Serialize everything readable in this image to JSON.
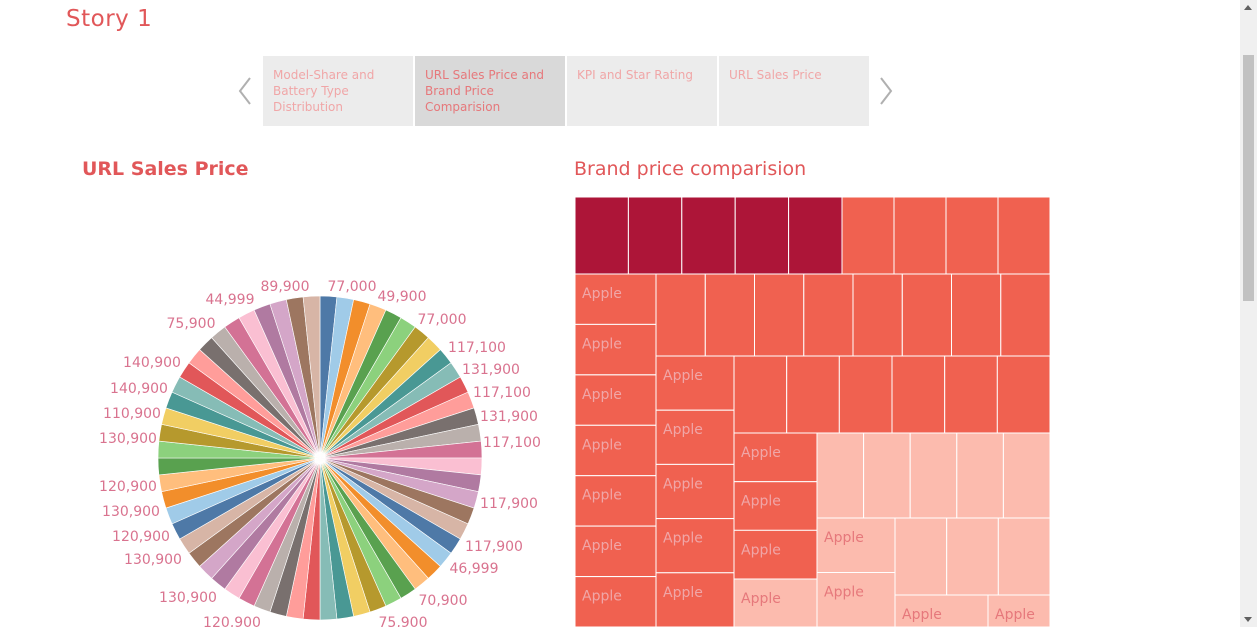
{
  "story": {
    "title": "Story 1"
  },
  "nav": {
    "prev_icon": "chevron-left-icon",
    "next_icon": "chevron-right-icon",
    "tabs": [
      {
        "label": "Model-Share and Battery Type Distribution",
        "active": false
      },
      {
        "label": "URL Sales Price and Brand Price Comparision",
        "active": true
      },
      {
        "label": "KPI and Star Rating",
        "active": false
      },
      {
        "label": "URL Sales Price",
        "active": false
      }
    ]
  },
  "colors": {
    "accent": "#e15759",
    "tree_dark": "#ad1538",
    "tree_mid": "#f06150",
    "tree_light": "#fcbbae",
    "tab_bg": "#ececec",
    "tab_active_bg": "#d9d9d9"
  },
  "chart_data": [
    {
      "type": "pie",
      "title": "URL Sales Price",
      "slice_count": 60,
      "visible_labels": [
        "89,900",
        "77,000",
        "49,900",
        "77,000",
        "117,100",
        "131,900",
        "117,100",
        "131,900",
        "117,100",
        "117,900",
        "117,900",
        "46,999",
        "70,900",
        "75,900",
        "120,900",
        "130,900",
        "130,900",
        "120,900",
        "130,900",
        "120,900",
        "130,900",
        "110,900",
        "140,900",
        "140,900",
        "75,900",
        "44,999"
      ],
      "palette": [
        "#4e79a7",
        "#a0cbe8",
        "#f28e2b",
        "#ffbe7d",
        "#59a14f",
        "#8cd17d",
        "#b6992d",
        "#f1ce63",
        "#499894",
        "#86bcb6",
        "#e15759",
        "#ff9d9a",
        "#79706e",
        "#bab0ac",
        "#d37295",
        "#fabfd2",
        "#b07aa1",
        "#d4a6c8",
        "#9d7660",
        "#d7b5a6"
      ]
    },
    {
      "type": "treemap",
      "title": "Brand price comparision",
      "tile_label": "Apple",
      "legend": "none"
    }
  ]
}
